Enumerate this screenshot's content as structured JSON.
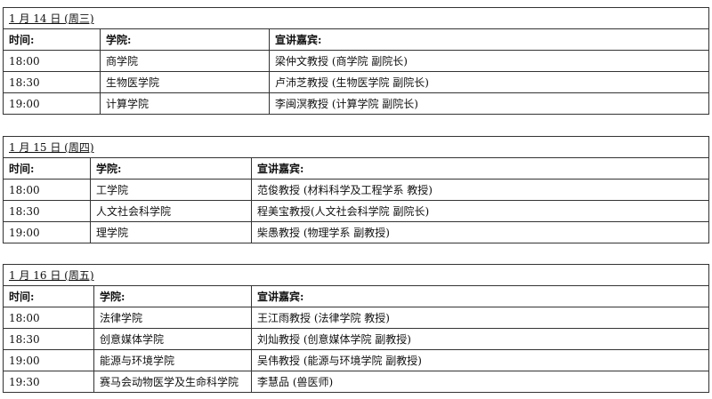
{
  "days": [
    {
      "title": "1 月 14 日 (周三)",
      "headers": [
        "时间:",
        "学院:",
        "宣讲嘉宾:"
      ],
      "rows": [
        [
          "18:00",
          "商学院",
          "梁仲文教授 (商学院  副院长)"
        ],
        [
          "18:30",
          "生物医学院",
          "卢沛芝教授 (生物医学院  副院长)"
        ],
        [
          "19:00",
          "计算学院",
          "李闽溟教授 (计算学院  副院长)"
        ]
      ]
    },
    {
      "title": "1 月 15 日 (周四)",
      "headers": [
        "时间:",
        "学院:",
        "宣讲嘉宾:"
      ],
      "rows": [
        [
          "18:00",
          "工学院",
          "范俊教授 (材料科学及工程学系  教授)"
        ],
        [
          "18:30",
          "人文社会科学院",
          "程美宝教授(人文社会科学院  副院长)"
        ],
        [
          "19:00",
          "理学院",
          "柴愚教授 (物理学系  副教授)"
        ]
      ]
    },
    {
      "title": "1 月 16 日 (周五)",
      "headers": [
        "时间:",
        "学院:",
        "宣讲嘉宾:"
      ],
      "rows": [
        [
          "18:00",
          "法律学院",
          "王江雨教授 (法律学院  教授)"
        ],
        [
          "18:30",
          "创意媒体学院",
          "刘灿教授 (创意媒体学院  副教授)"
        ],
        [
          "19:00",
          "能源与环境学院",
          "吴伟教授 (能源与环境学院  副教授)"
        ],
        [
          "19:30",
          "赛马会动物医学及生命科学院",
          "李慧品    (兽医师)"
        ]
      ]
    }
  ]
}
